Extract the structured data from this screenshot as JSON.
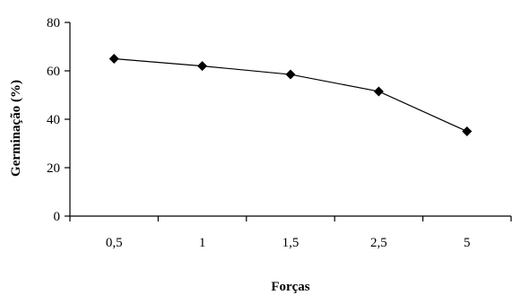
{
  "chart_data": {
    "type": "line",
    "categories": [
      "0,5",
      "1",
      "1,5",
      "2,5",
      "5"
    ],
    "series": [
      {
        "values": [
          65,
          62,
          58.5,
          51.5,
          35
        ],
        "marker": "diamond",
        "color": "#000000"
      }
    ],
    "xlabel": "Forças",
    "ylabel": "Germinação (%)",
    "ylim": [
      0,
      80
    ],
    "yticks": [
      0,
      20,
      40,
      60,
      80
    ],
    "grid": false
  }
}
